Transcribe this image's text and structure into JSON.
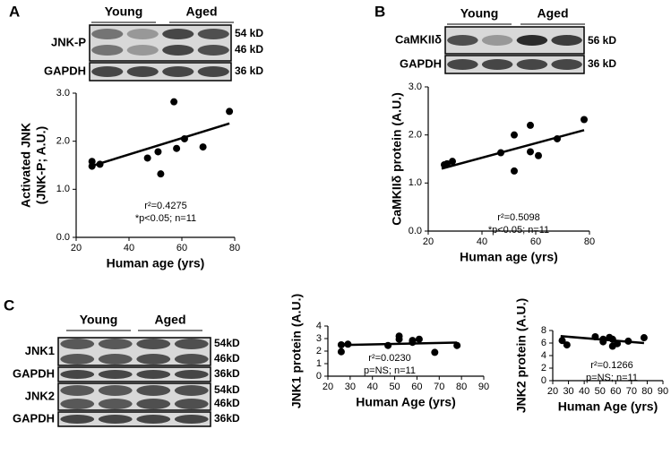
{
  "panel_letters": [
    "A",
    "B",
    "C"
  ],
  "blots": [
    {
      "headers": [
        "Young",
        "Aged"
      ],
      "rows": [
        {
          "label": "JNK-P",
          "sizes": [
            "54 kD",
            "46 kD"
          ]
        },
        {
          "label": "GAPDH",
          "sizes": [
            "36 kD"
          ]
        }
      ]
    },
    {
      "headers": [
        "Young",
        "Aged"
      ],
      "rows": [
        {
          "label": "CaMKIIδ",
          "sizes": [
            "56 kD"
          ]
        },
        {
          "label": "GAPDH",
          "sizes": [
            "36 kD"
          ]
        }
      ]
    },
    {
      "headers": [
        "Young",
        "Aged"
      ],
      "rows": [
        {
          "label": "JNK1",
          "sizes": [
            "54kD",
            "46kD"
          ]
        },
        {
          "label": "GAPDH",
          "sizes": [
            "36kD"
          ]
        },
        {
          "label": "JNK2",
          "sizes": [
            "54kD",
            "46kD"
          ]
        },
        {
          "label": "GAPDH",
          "sizes": [
            "36kD"
          ]
        }
      ]
    }
  ],
  "chart_data": [
    {
      "type": "scatter",
      "xlabel": "Human age (yrs)",
      "ylabel": [
        "Activated JNK",
        "(JNK-P; A.U.)"
      ],
      "x": [
        26,
        26,
        29,
        47,
        51,
        52,
        57,
        58,
        61,
        68,
        78
      ],
      "y": [
        1.58,
        1.48,
        1.52,
        1.65,
        1.78,
        1.32,
        2.82,
        1.85,
        2.05,
        1.88,
        2.62
      ],
      "fit": {
        "x": [
          25,
          78
        ],
        "y": [
          1.47,
          2.37
        ]
      },
      "xlim": [
        20,
        80
      ],
      "xticks": [
        20,
        40,
        60,
        80
      ],
      "ylim": [
        0,
        3
      ],
      "yticks": [
        {
          "value": 0,
          "label": "0.0"
        },
        {
          "value": 1,
          "label": "1.0"
        },
        {
          "value": 2,
          "label": "2.0"
        },
        {
          "value": 3,
          "label": "3.0"
        }
      ],
      "annotations": [
        "r²=0.4275",
        "*p<0.05; n=11"
      ],
      "color": "#000000"
    },
    {
      "type": "scatter",
      "xlabel": "Human age (yrs)",
      "ylabel": [
        "CaMKIIδ protein (A.U.)"
      ],
      "x": [
        26,
        27,
        29,
        47,
        52,
        52,
        58,
        58,
        61,
        68,
        78
      ],
      "y": [
        1.38,
        1.4,
        1.45,
        1.63,
        1.25,
        2.0,
        1.65,
        2.2,
        1.57,
        1.92,
        2.32
      ],
      "fit": {
        "x": [
          25,
          78
        ],
        "y": [
          1.3,
          2.1
        ]
      },
      "xlim": [
        20,
        80
      ],
      "xticks": [
        20,
        40,
        60,
        80
      ],
      "ylim": [
        0,
        3
      ],
      "yticks": [
        {
          "value": 0,
          "label": "0.0"
        },
        {
          "value": 1,
          "label": "1.0"
        },
        {
          "value": 2,
          "label": "2.0"
        },
        {
          "value": 3,
          "label": "3.0"
        }
      ],
      "annotations": [
        "r²=0.5098",
        "*p<0.05;  n=11"
      ],
      "color": "#000000"
    },
    {
      "type": "scatter",
      "xlabel": "Human Age (yrs)",
      "ylabel": [
        "JNK1 protein (A.U.)"
      ],
      "x": [
        26,
        26,
        29,
        47,
        52,
        52,
        58,
        58,
        61,
        68,
        78
      ],
      "y": [
        2.5,
        1.95,
        2.55,
        2.45,
        3.2,
        2.95,
        2.7,
        2.85,
        2.95,
        1.9,
        2.45
      ],
      "fit": {
        "x": [
          25,
          78
        ],
        "y": [
          2.48,
          2.68
        ]
      },
      "xlim": [
        20,
        90
      ],
      "xticks": [
        20,
        30,
        40,
        50,
        60,
        70,
        80,
        90
      ],
      "ylim": [
        0,
        4
      ],
      "yticks": [
        0,
        1,
        2,
        3,
        4
      ],
      "annotations": [
        "r²=0.0230",
        "p=NS; n=11"
      ],
      "color": "#000000"
    },
    {
      "type": "scatter",
      "xlabel": "Human Age (yrs)",
      "ylabel": [
        "JNK2 protein (A.U.)"
      ],
      "x": [
        26,
        29,
        47,
        52,
        52,
        56,
        58,
        58,
        61,
        68,
        78
      ],
      "y": [
        6.4,
        5.7,
        7.0,
        6.6,
        6.2,
        6.9,
        5.5,
        6.6,
        5.9,
        6.3,
        6.85
      ],
      "fit": {
        "x": [
          25,
          78
        ],
        "y": [
          7.1,
          6.0
        ]
      },
      "xlim": [
        20,
        90
      ],
      "xticks": [
        20,
        30,
        40,
        50,
        60,
        70,
        80,
        90
      ],
      "ylim": [
        0,
        8
      ],
      "yticks": [
        0,
        2,
        4,
        6,
        8
      ],
      "annotations": [
        "r²=0.1266",
        "p=NS; n=11"
      ],
      "color": "#000000"
    }
  ]
}
